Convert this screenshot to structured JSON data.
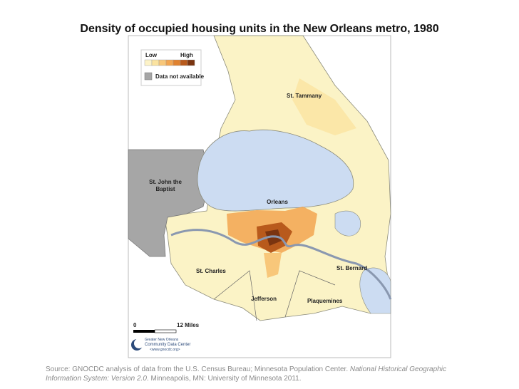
{
  "title": "Density of occupied housing units in the New Orleans metro, 1980",
  "legend": {
    "low": "Low",
    "high": "High",
    "colors": [
      "#fdf3c8",
      "#fbe3a0",
      "#f8c77a",
      "#f2a550",
      "#e0822f",
      "#b85a1c",
      "#7a3410"
    ],
    "na_color": "#a6a6a6",
    "na_label": "Data not available"
  },
  "labels": {
    "st_tammany": "St. Tammany",
    "st_john_1": "St. John the",
    "st_john_2": "Baptist",
    "orleans": "Orleans",
    "st_charles": "St. Charles",
    "st_bernard": "St. Bernard",
    "jefferson": "Jefferson",
    "plaquemines": "Plaquemines"
  },
  "scale": {
    "zero": "0",
    "end": "12 Miles"
  },
  "logo": {
    "line_1": "Greater New Orleans",
    "line_2": "Community Data Center",
    "url": "<www.gnocdc.org>"
  },
  "source": {
    "text_1": "Source: GNOCDC analysis of data from the U.S. Census Bureau; Minnesota Population Center. ",
    "italic": "National Historical Geographic Information System: Version 2.0",
    "text_2": ". Minneapolis, MN: University of Minnesota 2011."
  }
}
